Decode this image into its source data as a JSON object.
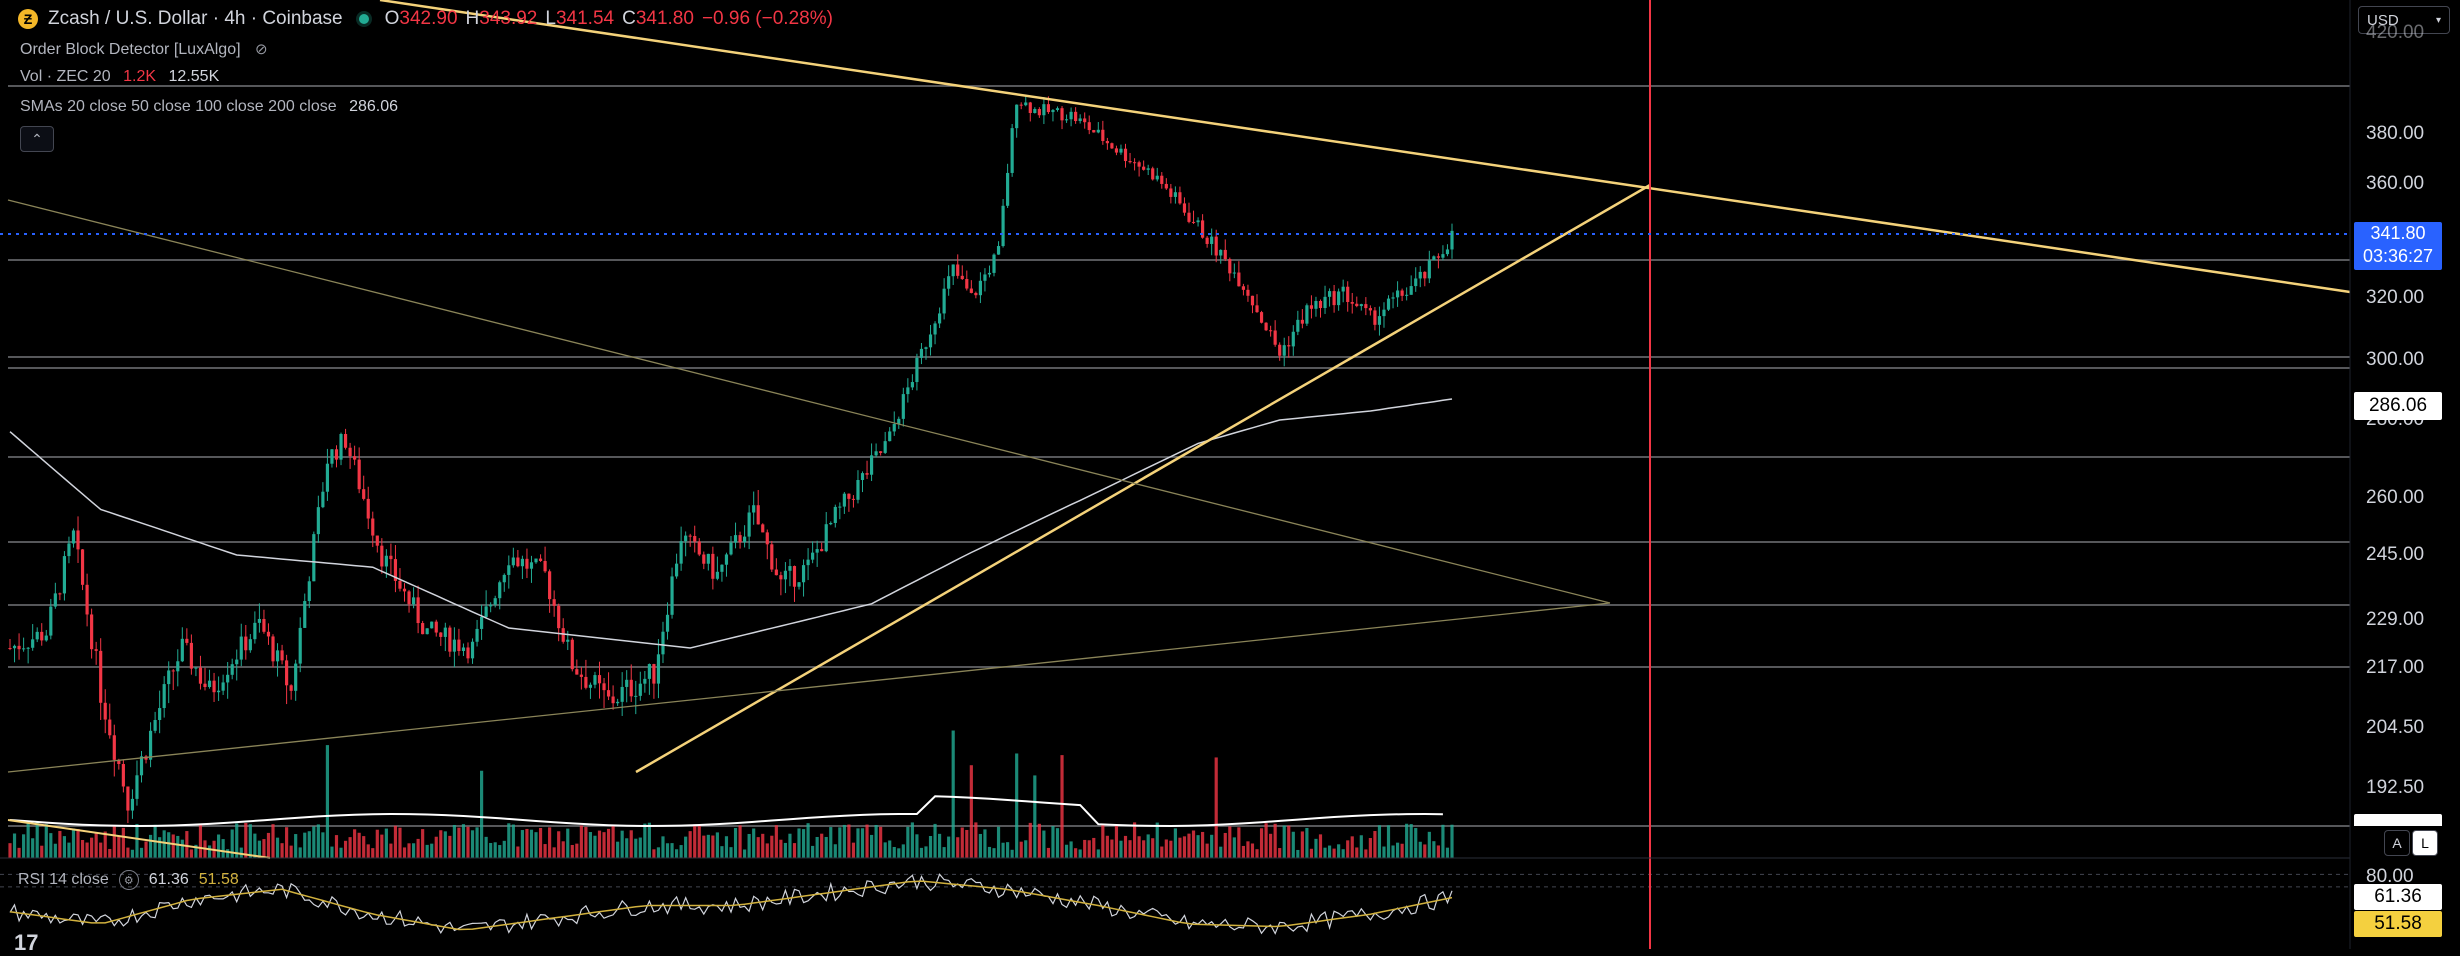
{
  "header": {
    "symbol_title": "Zcash / U.S. Dollar · 4h · Coinbase",
    "coin_icon": "zcash-coin-icon",
    "ohlc": [
      {
        "k": "O",
        "v": "342.90"
      },
      {
        "k": "H",
        "v": "343.92"
      },
      {
        "k": "L",
        "v": "341.54"
      },
      {
        "k": "C",
        "v": "341.80"
      },
      {
        "k": "",
        "v": "−0.96 (−0.28%)"
      }
    ],
    "indicator_1": "Order Block Detector [LuxAlgo]",
    "vol_label": "Vol · ZEC 20",
    "vol_value_1": "1.2K",
    "vol_value_2": "12.55K",
    "sma_label": "SMAs 20 close 50 close 100 close 200 close",
    "sma_value": "286.06",
    "collapse_icon": "chevron-up-icon",
    "currency": "USD"
  },
  "axis": {
    "top_partial": "420.00",
    "labels": [
      "380.00",
      "360.00",
      "320.00",
      "300.00",
      "280.00",
      "260.00",
      "245.00",
      "229.00",
      "217.00",
      "204.50",
      "192.50"
    ],
    "last_price": "341.80",
    "countdown": "03:36:27",
    "sma_marker": "286.06",
    "scale_buttons": [
      "A",
      "L"
    ]
  },
  "rsi": {
    "label": "RSI 14 close",
    "value_1": "61.36",
    "value_2": "51.58",
    "level_80": "80.00",
    "box_1": "61.36",
    "box_2": "51.58"
  },
  "logo": "17",
  "colors": {
    "up": "#22ab94",
    "down": "#f23645",
    "trendline": "#f4d27a",
    "price_line": "#2962ff",
    "vertical_marker": "#f23645"
  },
  "chart_data": {
    "type": "candlestick",
    "timeframe": "4h",
    "y_range": [
      185,
      425
    ],
    "last_price": 341.8,
    "sma_200_last": 286.06,
    "horizontal_levels": [
      407,
      330,
      302,
      297,
      273,
      250,
      232,
      218,
      187
    ],
    "close_path_keypoints": [
      [
        0,
        222
      ],
      [
        8,
        226
      ],
      [
        14,
        250
      ],
      [
        20,
        212
      ],
      [
        26,
        190
      ],
      [
        38,
        222
      ],
      [
        44,
        212
      ],
      [
        55,
        228
      ],
      [
        62,
        212
      ],
      [
        70,
        270
      ],
      [
        74,
        275
      ],
      [
        82,
        245
      ],
      [
        92,
        226
      ],
      [
        102,
        222
      ],
      [
        110,
        245
      ],
      [
        118,
        240
      ],
      [
        124,
        218
      ],
      [
        132,
        210
      ],
      [
        142,
        216
      ],
      [
        148,
        250
      ],
      [
        156,
        240
      ],
      [
        164,
        256
      ],
      [
        170,
        238
      ],
      [
        176,
        242
      ],
      [
        182,
        255
      ],
      [
        194,
        275
      ],
      [
        200,
        298
      ],
      [
        208,
        330
      ],
      [
        212,
        320
      ],
      [
        218,
        336
      ],
      [
        222,
        395
      ],
      [
        226,
        390
      ],
      [
        234,
        388
      ],
      [
        244,
        374
      ],
      [
        252,
        364
      ],
      [
        262,
        345
      ],
      [
        272,
        325
      ],
      [
        280,
        302
      ],
      [
        286,
        316
      ],
      [
        294,
        322
      ],
      [
        300,
        313
      ],
      [
        306,
        320
      ],
      [
        312,
        328
      ],
      [
        318,
        341.8
      ]
    ],
    "sma_keypoints": [
      [
        0,
        277
      ],
      [
        20,
        257
      ],
      [
        50,
        245
      ],
      [
        80,
        242
      ],
      [
        110,
        227
      ],
      [
        150,
        222
      ],
      [
        190,
        233
      ],
      [
        230,
        256
      ],
      [
        262,
        274
      ],
      [
        280,
        280
      ],
      [
        300,
        283
      ],
      [
        318,
        287
      ]
    ],
    "rsi_keypoints": [
      [
        0,
        50
      ],
      [
        20,
        40
      ],
      [
        40,
        60
      ],
      [
        60,
        68
      ],
      [
        80,
        48
      ],
      [
        100,
        35
      ],
      [
        120,
        45
      ],
      [
        140,
        55
      ],
      [
        160,
        55
      ],
      [
        180,
        65
      ],
      [
        200,
        75
      ],
      [
        220,
        68
      ],
      [
        240,
        55
      ],
      [
        260,
        40
      ],
      [
        280,
        38
      ],
      [
        300,
        48
      ],
      [
        318,
        61.36
      ]
    ]
  }
}
